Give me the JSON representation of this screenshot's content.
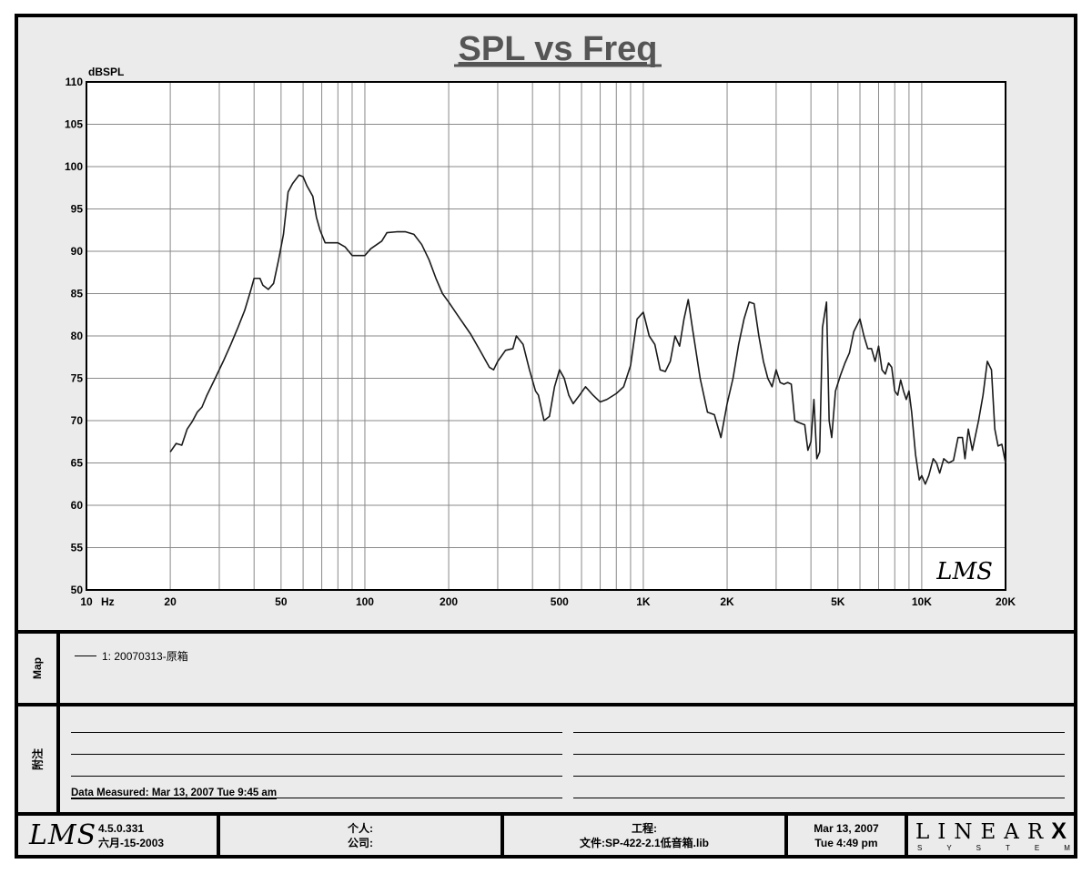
{
  "chart_data": {
    "type": "line",
    "title": "SPL vs Freq",
    "ylabel": "dBSPL",
    "xlabel": "Hz",
    "x_scale": "log",
    "xlim": [
      10,
      20000
    ],
    "ylim": [
      50,
      110
    ],
    "grid": true,
    "y_ticks": [
      50,
      55,
      60,
      65,
      70,
      75,
      80,
      85,
      90,
      95,
      100,
      105,
      110
    ],
    "x_ticks": [
      {
        "value": 10,
        "label": "10"
      },
      {
        "value": 20,
        "label": "20"
      },
      {
        "value": 50,
        "label": "50"
      },
      {
        "value": 100,
        "label": "100"
      },
      {
        "value": 200,
        "label": "200"
      },
      {
        "value": 500,
        "label": "500"
      },
      {
        "value": 1000,
        "label": "1K"
      },
      {
        "value": 2000,
        "label": "2K"
      },
      {
        "value": 5000,
        "label": "5K"
      },
      {
        "value": 10000,
        "label": "10K"
      },
      {
        "value": 20000,
        "label": "20K"
      }
    ],
    "watermark": "LMS",
    "series": [
      {
        "name": "1: 20070313-原箱",
        "color": "#1a1a1a",
        "points": [
          [
            20,
            66.3
          ],
          [
            21,
            67.3
          ],
          [
            22,
            67.1
          ],
          [
            23,
            69.0
          ],
          [
            24,
            69.9
          ],
          [
            25,
            71.0
          ],
          [
            26,
            71.6
          ],
          [
            27,
            72.9
          ],
          [
            29,
            75.0
          ],
          [
            31,
            77.0
          ],
          [
            33,
            79.0
          ],
          [
            35,
            81.0
          ],
          [
            37,
            83.0
          ],
          [
            39,
            85.5
          ],
          [
            40,
            86.8
          ],
          [
            42,
            86.8
          ],
          [
            43,
            86.0
          ],
          [
            45,
            85.5
          ],
          [
            47,
            86.2
          ],
          [
            49,
            89.0
          ],
          [
            51,
            92.0
          ],
          [
            53,
            97.0
          ],
          [
            55,
            98.0
          ],
          [
            58,
            99.0
          ],
          [
            60,
            98.8
          ],
          [
            62,
            97.7
          ],
          [
            65,
            96.5
          ],
          [
            67,
            94.0
          ],
          [
            69,
            92.5
          ],
          [
            72,
            91.0
          ],
          [
            75,
            91.0
          ],
          [
            80,
            91.0
          ],
          [
            85,
            90.5
          ],
          [
            90,
            89.5
          ],
          [
            95,
            89.5
          ],
          [
            100,
            89.5
          ],
          [
            105,
            90.3
          ],
          [
            115,
            91.2
          ],
          [
            120,
            92.2
          ],
          [
            130,
            92.3
          ],
          [
            140,
            92.3
          ],
          [
            150,
            92.0
          ],
          [
            160,
            90.8
          ],
          [
            170,
            89.0
          ],
          [
            180,
            86.8
          ],
          [
            190,
            85.0
          ],
          [
            200,
            84.0
          ],
          [
            220,
            82.0
          ],
          [
            240,
            80.2
          ],
          [
            260,
            78.2
          ],
          [
            280,
            76.3
          ],
          [
            290,
            76.0
          ],
          [
            300,
            77.0
          ],
          [
            320,
            78.3
          ],
          [
            340,
            78.5
          ],
          [
            350,
            80.0
          ],
          [
            370,
            79.0
          ],
          [
            390,
            76.0
          ],
          [
            410,
            73.5
          ],
          [
            420,
            73.0
          ],
          [
            440,
            70.0
          ],
          [
            460,
            70.5
          ],
          [
            480,
            74.0
          ],
          [
            500,
            76.0
          ],
          [
            520,
            75.0
          ],
          [
            540,
            73.0
          ],
          [
            560,
            72.0
          ],
          [
            590,
            73.0
          ],
          [
            620,
            74.0
          ],
          [
            660,
            73.0
          ],
          [
            700,
            72.2
          ],
          [
            740,
            72.5
          ],
          [
            800,
            73.2
          ],
          [
            850,
            74.0
          ],
          [
            900,
            76.5
          ],
          [
            950,
            82.0
          ],
          [
            1000,
            82.8
          ],
          [
            1050,
            80.0
          ],
          [
            1100,
            79.0
          ],
          [
            1150,
            76.0
          ],
          [
            1200,
            75.8
          ],
          [
            1250,
            77.0
          ],
          [
            1300,
            80.0
          ],
          [
            1350,
            78.8
          ],
          [
            1400,
            82.0
          ],
          [
            1450,
            84.3
          ],
          [
            1500,
            81.0
          ],
          [
            1600,
            75.0
          ],
          [
            1700,
            71.0
          ],
          [
            1800,
            70.7
          ],
          [
            1900,
            68.0
          ],
          [
            2000,
            72.0
          ],
          [
            2100,
            75.0
          ],
          [
            2200,
            79.0
          ],
          [
            2300,
            82.0
          ],
          [
            2400,
            84.0
          ],
          [
            2500,
            83.8
          ],
          [
            2600,
            80.0
          ],
          [
            2700,
            77.0
          ],
          [
            2800,
            75.0
          ],
          [
            2900,
            74.0
          ],
          [
            3000,
            76.0
          ],
          [
            3100,
            74.5
          ],
          [
            3200,
            74.3
          ],
          [
            3300,
            74.5
          ],
          [
            3400,
            74.3
          ],
          [
            3500,
            70.0
          ],
          [
            3600,
            69.8
          ],
          [
            3800,
            69.5
          ],
          [
            3900,
            66.5
          ],
          [
            4000,
            67.5
          ],
          [
            4100,
            72.5
          ],
          [
            4200,
            65.5
          ],
          [
            4300,
            66.3
          ],
          [
            4400,
            81.0
          ],
          [
            4550,
            84.0
          ],
          [
            4650,
            70.0
          ],
          [
            4750,
            68.0
          ],
          [
            4900,
            73.5
          ],
          [
            5100,
            75.3
          ],
          [
            5300,
            76.8
          ],
          [
            5500,
            78.0
          ],
          [
            5700,
            80.5
          ],
          [
            5900,
            81.5
          ],
          [
            6000,
            82.0
          ],
          [
            6200,
            80.0
          ],
          [
            6400,
            78.5
          ],
          [
            6600,
            78.5
          ],
          [
            6800,
            77.0
          ],
          [
            7000,
            78.8
          ],
          [
            7200,
            76.0
          ],
          [
            7400,
            75.5
          ],
          [
            7600,
            76.8
          ],
          [
            7800,
            76.3
          ],
          [
            8000,
            73.5
          ],
          [
            8200,
            73.0
          ],
          [
            8400,
            74.8
          ],
          [
            8600,
            73.5
          ],
          [
            8800,
            72.5
          ],
          [
            9000,
            73.5
          ],
          [
            9200,
            71.0
          ],
          [
            9500,
            66.0
          ],
          [
            9800,
            63.0
          ],
          [
            10000,
            63.5
          ],
          [
            10300,
            62.5
          ],
          [
            10600,
            63.5
          ],
          [
            11000,
            65.5
          ],
          [
            11300,
            65.0
          ],
          [
            11600,
            63.8
          ],
          [
            12000,
            65.5
          ],
          [
            12500,
            65.0
          ],
          [
            13000,
            65.3
          ],
          [
            13500,
            68.0
          ],
          [
            14000,
            68.0
          ],
          [
            14300,
            65.5
          ],
          [
            14700,
            69.0
          ],
          [
            15200,
            66.5
          ],
          [
            16000,
            70.0
          ],
          [
            16600,
            73.0
          ],
          [
            17200,
            77.0
          ],
          [
            17800,
            76.0
          ],
          [
            18300,
            69.0
          ],
          [
            18800,
            67.0
          ],
          [
            19400,
            67.2
          ],
          [
            20000,
            65.0
          ]
        ]
      }
    ]
  },
  "map_label": "Map",
  "legend_entry": "1: 20070313-原箱",
  "notes_label": "附注",
  "measured_text": "Data Measured: Mar 13, 2007  Tue  9:45 am",
  "footer": {
    "logo": "LMS",
    "version": "4.5.0.331",
    "build_date": "六月-15-2003",
    "person": "个人:",
    "company": "公司:",
    "project": "工程:",
    "file": "文件:SP-422-2.1低音箱.lib",
    "date": "Mar 13, 2007",
    "time": "Tue  4:49 pm",
    "brand_top": "LINEAR",
    "brand_x": "X",
    "brand_bottom": "SYSTEMS"
  }
}
